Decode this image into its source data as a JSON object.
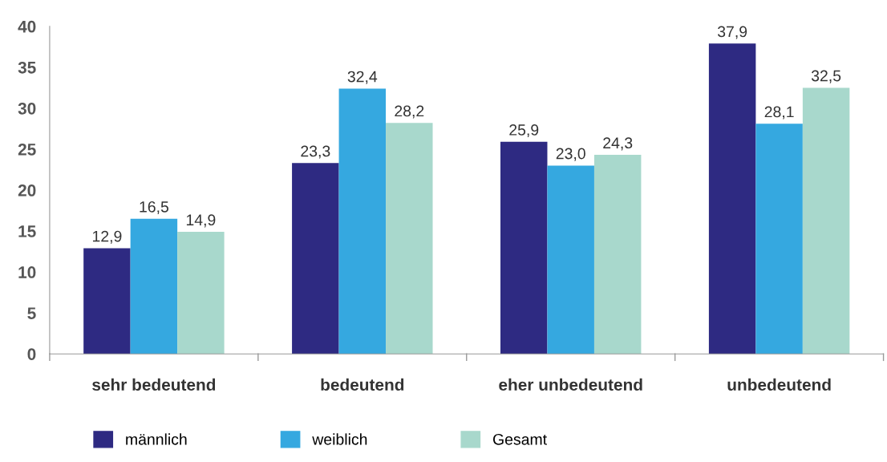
{
  "chart_data": {
    "type": "bar",
    "categories": [
      "sehr bedeutend",
      "bedeutend",
      "eher unbedeutend",
      "unbedeutend"
    ],
    "series": [
      {
        "name": "männlich",
        "color": "#2e2a82",
        "values": [
          12.9,
          23.3,
          25.9,
          37.9
        ],
        "value_labels": [
          "12,9",
          "23,3",
          "25,9",
          "37,9"
        ]
      },
      {
        "name": "weiblich",
        "color": "#35a8e0",
        "values": [
          16.5,
          32.4,
          23.0,
          28.1
        ],
        "value_labels": [
          "16,5",
          "32,4",
          "23,0",
          "28,1"
        ]
      },
      {
        "name": "Gesamt",
        "color": "#a8d8cc",
        "values": [
          14.9,
          28.2,
          24.3,
          32.5
        ],
        "value_labels": [
          "14,9",
          "28,2",
          "24,3",
          "32,5"
        ]
      }
    ],
    "ylim": [
      0,
      40
    ],
    "yticks": [
      0,
      5,
      10,
      15,
      20,
      25,
      30,
      35,
      40
    ],
    "grid": false,
    "legend": "bottom"
  }
}
